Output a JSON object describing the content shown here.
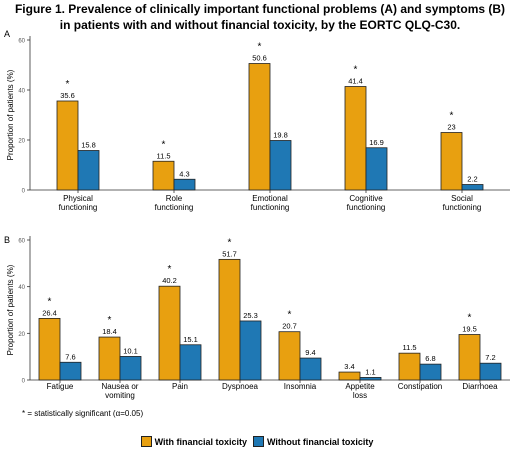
{
  "figure": {
    "title_line1": "Figure 1. Prevalence of clinically important functional problems (A) and symptoms (B)",
    "title_line2": "in patients with and without financial toxicity, by the EORTC QLQ-C30.",
    "footnote": "* = statistically significant (α=0.05)"
  },
  "legend": {
    "with_label": "With financial toxicity",
    "without_label": "Without financial toxicity"
  },
  "colors": {
    "with": "#E8A010",
    "without": "#1F78B4"
  },
  "chart_data": [
    {
      "type": "bar",
      "panel_label": "A",
      "ylabel": "Proportion of patients (%)",
      "ylim": [
        0,
        60
      ],
      "yticks": [
        0,
        20,
        40,
        60
      ],
      "categories": [
        [
          "Physical",
          "functioning"
        ],
        [
          "Role",
          "functioning"
        ],
        [
          "Emotional",
          "functioning"
        ],
        [
          "Cognitive",
          "functioning"
        ],
        [
          "Social",
          "functioning"
        ]
      ],
      "series": [
        {
          "name": "With financial toxicity",
          "values": [
            35.6,
            11.5,
            50.6,
            41.4,
            23
          ],
          "labels": [
            "35.6",
            "11.5",
            "50.6",
            "41.4",
            "23"
          ]
        },
        {
          "name": "Without financial toxicity",
          "values": [
            15.8,
            4.3,
            19.8,
            16.9,
            2.2
          ],
          "labels": [
            "15.8",
            "4.3",
            "19.8",
            "16.9",
            "2.2"
          ]
        }
      ],
      "significant": [
        true,
        true,
        true,
        true,
        true
      ]
    },
    {
      "type": "bar",
      "panel_label": "B",
      "ylabel": "Proportion of patients (%)",
      "ylim": [
        0,
        60
      ],
      "yticks": [
        0,
        20,
        40,
        60
      ],
      "categories": [
        [
          "Fatigue"
        ],
        [
          "Nausea or",
          "vomiting"
        ],
        [
          "Pain"
        ],
        [
          "Dyspnoea"
        ],
        [
          "Insomnia"
        ],
        [
          "Appetite",
          "loss"
        ],
        [
          "Constipation"
        ],
        [
          "Diarrhoea"
        ]
      ],
      "series": [
        {
          "name": "With financial toxicity",
          "values": [
            26.4,
            18.4,
            40.2,
            51.7,
            20.7,
            3.4,
            11.5,
            19.5
          ],
          "labels": [
            "26.4",
            "18.4",
            "40.2",
            "51.7",
            "20.7",
            "3.4",
            "11.5",
            "19.5"
          ]
        },
        {
          "name": "Without financial toxicity",
          "values": [
            7.6,
            10.1,
            15.1,
            25.3,
            9.4,
            1.1,
            6.8,
            7.2
          ],
          "labels": [
            "7.6",
            "10.1",
            "15.1",
            "25.3",
            "9.4",
            "1.1",
            "6.8",
            "7.2"
          ]
        }
      ],
      "significant": [
        true,
        true,
        true,
        true,
        true,
        false,
        false,
        true
      ]
    }
  ]
}
